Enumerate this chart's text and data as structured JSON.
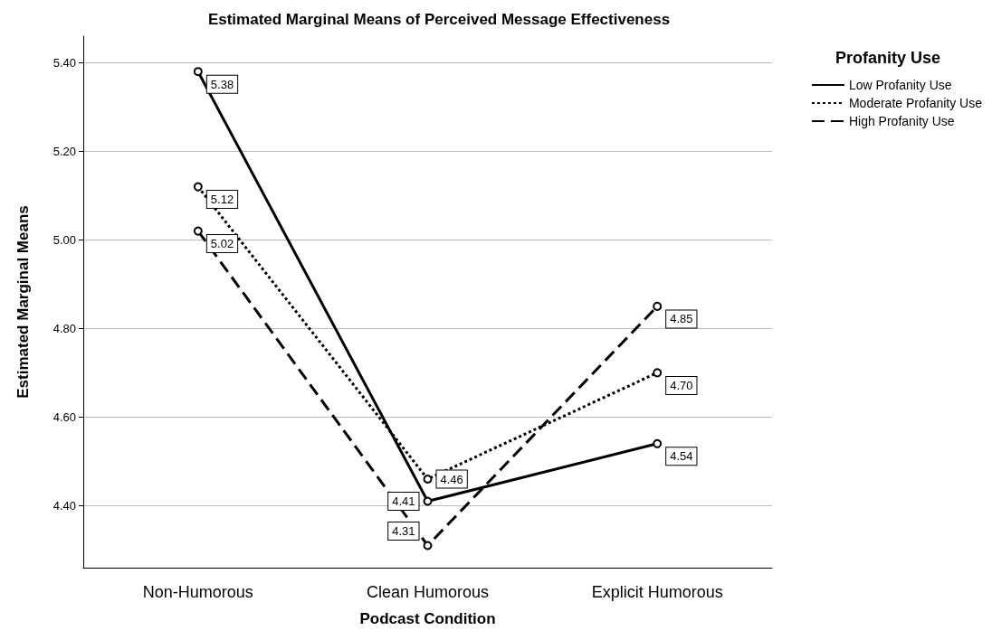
{
  "chart_data": {
    "type": "line",
    "title": "Estimated Marginal Means of Perceived Message Effectiveness",
    "xlabel": "Podcast Condition",
    "ylabel": "Estimated Marginal Means",
    "legend_title": "Profanity Use",
    "categories": [
      "Non-Humorous",
      "Clean Humorous",
      "Explicit Humorous"
    ],
    "series": [
      {
        "name": "Low Profanity Use",
        "color": "#000000",
        "line_style": "solid",
        "values": [
          5.38,
          4.41,
          4.54
        ],
        "value_labels": [
          "5.38",
          "4.41",
          "4.54"
        ]
      },
      {
        "name": "Moderate Profanity Use",
        "color": "#000000",
        "line_style": "dotted",
        "values": [
          5.12,
          4.46,
          4.7
        ],
        "value_labels": [
          "5.12",
          "4.46",
          "4.70"
        ]
      },
      {
        "name": "High Profanity Use",
        "color": "#000000",
        "line_style": "dashed",
        "values": [
          5.02,
          4.31,
          4.85
        ],
        "value_labels": [
          "5.02",
          "4.31",
          "4.85"
        ]
      }
    ],
    "ylim": [
      4.26,
      5.46
    ],
    "yticks": [
      {
        "value": 4.4,
        "label": "4.40"
      },
      {
        "value": 4.6,
        "label": "4.60"
      },
      {
        "value": 4.8,
        "label": "4.80"
      },
      {
        "value": 5.0,
        "label": "5.00"
      },
      {
        "value": 5.2,
        "label": "5.20"
      },
      {
        "value": 5.4,
        "label": "5.40"
      }
    ],
    "grid": "y",
    "legend": "top right",
    "marker": "circle"
  }
}
